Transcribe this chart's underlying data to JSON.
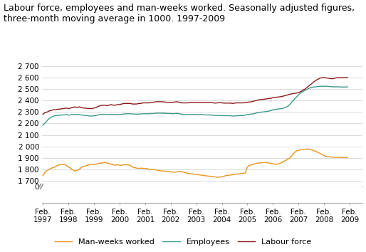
{
  "title": "Labour force, employees and man-weeks worked. Seasonally adjusted figures,\nthree-month moving average in 1000. 1997-2009",
  "yticks_main": [
    1700,
    1800,
    1900,
    2000,
    2100,
    2200,
    2300,
    2400,
    2500,
    2600,
    2700
  ],
  "ytick_labels_main": [
    "1 700",
    "1 800",
    "1 900",
    "2 000",
    "2 100",
    "2 200",
    "2 300",
    "2 400",
    "2 500",
    "2 600",
    "2 700"
  ],
  "ylim": [
    1650,
    2750
  ],
  "xlim_start": 1997.05,
  "xlim_end": 2009.58,
  "xtick_years": [
    1997,
    1998,
    1999,
    2000,
    2001,
    2002,
    2003,
    2004,
    2005,
    2006,
    2007,
    2008,
    2009
  ],
  "background_color": "#ffffff",
  "grid_color": "#cccccc",
  "line_lf_color": "#8b1a1a",
  "line_emp_color": "#3a9a8a",
  "line_mw_color": "#e8941a",
  "legend_labels": [
    "Man-weeks worked",
    "Employees",
    "Labour force"
  ],
  "title_fontsize": 9.0,
  "axis_fontsize": 7.5,
  "legend_fontsize": 8.0,
  "labour_force": [
    2280,
    2295,
    2300,
    2310,
    2315,
    2320,
    2320,
    2325,
    2325,
    2330,
    2330,
    2335,
    2330,
    2335,
    2340,
    2345,
    2340,
    2345,
    2340,
    2335,
    2335,
    2330,
    2330,
    2330,
    2335,
    2340,
    2350,
    2355,
    2360,
    2360,
    2355,
    2360,
    2365,
    2360,
    2360,
    2365,
    2365,
    2370,
    2375,
    2375,
    2375,
    2375,
    2370,
    2370,
    2370,
    2375,
    2375,
    2380,
    2380,
    2380,
    2380,
    2385,
    2385,
    2390,
    2390,
    2390,
    2390,
    2388,
    2385,
    2385,
    2385,
    2385,
    2388,
    2390,
    2385,
    2380,
    2380,
    2380,
    2380,
    2382,
    2385,
    2385,
    2385,
    2385,
    2385,
    2385,
    2385,
    2385,
    2385,
    2383,
    2380,
    2378,
    2380,
    2382,
    2380,
    2378,
    2378,
    2378,
    2378,
    2375,
    2378,
    2380,
    2380,
    2380,
    2380,
    2383,
    2385,
    2388,
    2390,
    2395,
    2400,
    2405,
    2408,
    2410,
    2412,
    2415,
    2418,
    2420,
    2425,
    2428,
    2430,
    2432,
    2435,
    2440,
    2445,
    2450,
    2455,
    2460,
    2462,
    2465,
    2470,
    2478,
    2490,
    2500,
    2515,
    2530,
    2545,
    2560,
    2575,
    2585,
    2595,
    2600,
    2600,
    2598,
    2595,
    2592,
    2590,
    2595,
    2600,
    2598,
    2600,
    2600,
    2600,
    2600
  ],
  "employees": [
    2185,
    2205,
    2225,
    2245,
    2255,
    2265,
    2270,
    2270,
    2272,
    2275,
    2275,
    2278,
    2272,
    2275,
    2278,
    2280,
    2278,
    2278,
    2275,
    2272,
    2270,
    2268,
    2265,
    2265,
    2268,
    2270,
    2275,
    2278,
    2280,
    2280,
    2278,
    2278,
    2280,
    2278,
    2278,
    2278,
    2280,
    2280,
    2283,
    2285,
    2285,
    2285,
    2283,
    2282,
    2282,
    2282,
    2283,
    2285,
    2285,
    2285,
    2285,
    2287,
    2287,
    2290,
    2290,
    2290,
    2290,
    2290,
    2288,
    2287,
    2287,
    2285,
    2287,
    2288,
    2285,
    2282,
    2280,
    2278,
    2278,
    2278,
    2278,
    2280,
    2278,
    2278,
    2278,
    2278,
    2275,
    2275,
    2275,
    2273,
    2272,
    2270,
    2270,
    2270,
    2268,
    2268,
    2268,
    2268,
    2268,
    2265,
    2265,
    2268,
    2268,
    2270,
    2270,
    2272,
    2278,
    2280,
    2283,
    2285,
    2290,
    2295,
    2298,
    2300,
    2302,
    2305,
    2308,
    2312,
    2318,
    2322,
    2325,
    2328,
    2330,
    2335,
    2340,
    2350,
    2368,
    2390,
    2410,
    2430,
    2450,
    2468,
    2478,
    2488,
    2498,
    2508,
    2515,
    2518,
    2520,
    2522,
    2525,
    2525,
    2525,
    2525,
    2523,
    2522,
    2520,
    2520,
    2520,
    2520,
    2518,
    2518,
    2518,
    2520
  ],
  "man_weeks": [
    1745,
    1775,
    1790,
    1800,
    1810,
    1815,
    1825,
    1835,
    1840,
    1845,
    1840,
    1835,
    1820,
    1810,
    1795,
    1785,
    1790,
    1800,
    1815,
    1825,
    1830,
    1835,
    1840,
    1845,
    1840,
    1845,
    1850,
    1855,
    1855,
    1860,
    1855,
    1850,
    1845,
    1840,
    1835,
    1840,
    1835,
    1835,
    1840,
    1840,
    1838,
    1835,
    1820,
    1815,
    1810,
    1808,
    1810,
    1808,
    1808,
    1805,
    1800,
    1800,
    1800,
    1795,
    1790,
    1788,
    1785,
    1785,
    1782,
    1780,
    1778,
    1775,
    1775,
    1778,
    1780,
    1778,
    1775,
    1770,
    1765,
    1762,
    1760,
    1758,
    1755,
    1752,
    1750,
    1748,
    1745,
    1742,
    1740,
    1738,
    1735,
    1733,
    1730,
    1732,
    1735,
    1740,
    1745,
    1748,
    1750,
    1752,
    1755,
    1758,
    1760,
    1762,
    1765,
    1768,
    1820,
    1835,
    1840,
    1845,
    1850,
    1855,
    1855,
    1858,
    1860,
    1858,
    1855,
    1852,
    1848,
    1845,
    1845,
    1850,
    1858,
    1868,
    1878,
    1890,
    1900,
    1920,
    1945,
    1960,
    1965,
    1970,
    1972,
    1975,
    1978,
    1975,
    1970,
    1965,
    1958,
    1948,
    1940,
    1930,
    1920,
    1912,
    1910,
    1908,
    1905,
    1905,
    1905,
    1905,
    1903,
    1903,
    1902,
    1905
  ]
}
